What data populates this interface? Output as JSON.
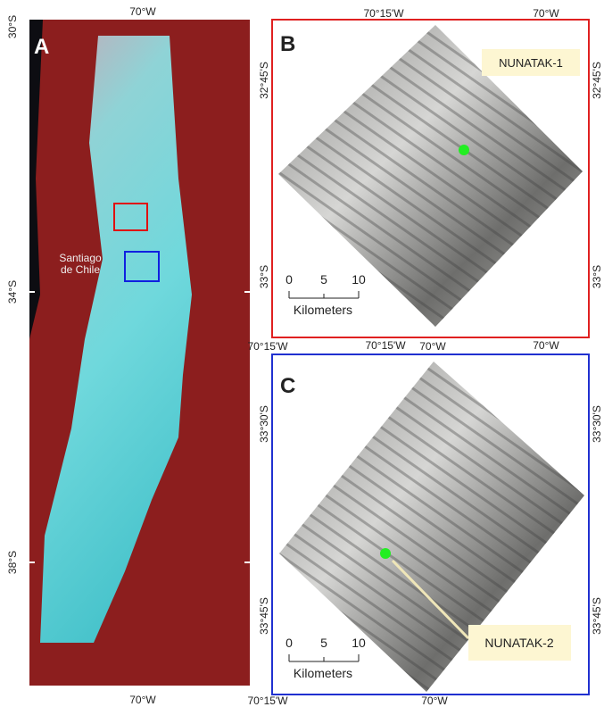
{
  "panels": {
    "a": {
      "letter": "A",
      "top_label": "70°W",
      "bottom_label": "70°W",
      "left_labels": [
        "30°S",
        "34°S",
        "38°S"
      ],
      "city_label": [
        "Santiago",
        "de Chile"
      ]
    },
    "b": {
      "letter": "B",
      "top_labels": [
        "70°15'W",
        "70°W"
      ],
      "bottom_labels": [
        "70°15'W",
        "70°W"
      ],
      "left_labels": [
        "32°45'S",
        "33°S"
      ],
      "right_labels": [
        "32°45'S",
        "33°S"
      ],
      "site_label": "NUNATAK-1",
      "scale": {
        "ticks": [
          "0",
          "5",
          "10"
        ],
        "unit": "Kilometers"
      }
    },
    "c": {
      "letter": "C",
      "top_labels": [
        "70°15'W",
        "70°W"
      ],
      "bottom_labels": [
        "70°15'W",
        "70°W"
      ],
      "left_labels": [
        "33°30'S",
        "33°45'S"
      ],
      "right_labels": [
        "33°30'S",
        "33°45'S"
      ],
      "site_label": "NUNATAK-2",
      "scale": {
        "ticks": [
          "0",
          "5",
          "10"
        ],
        "unit": "Kilometers"
      }
    }
  }
}
